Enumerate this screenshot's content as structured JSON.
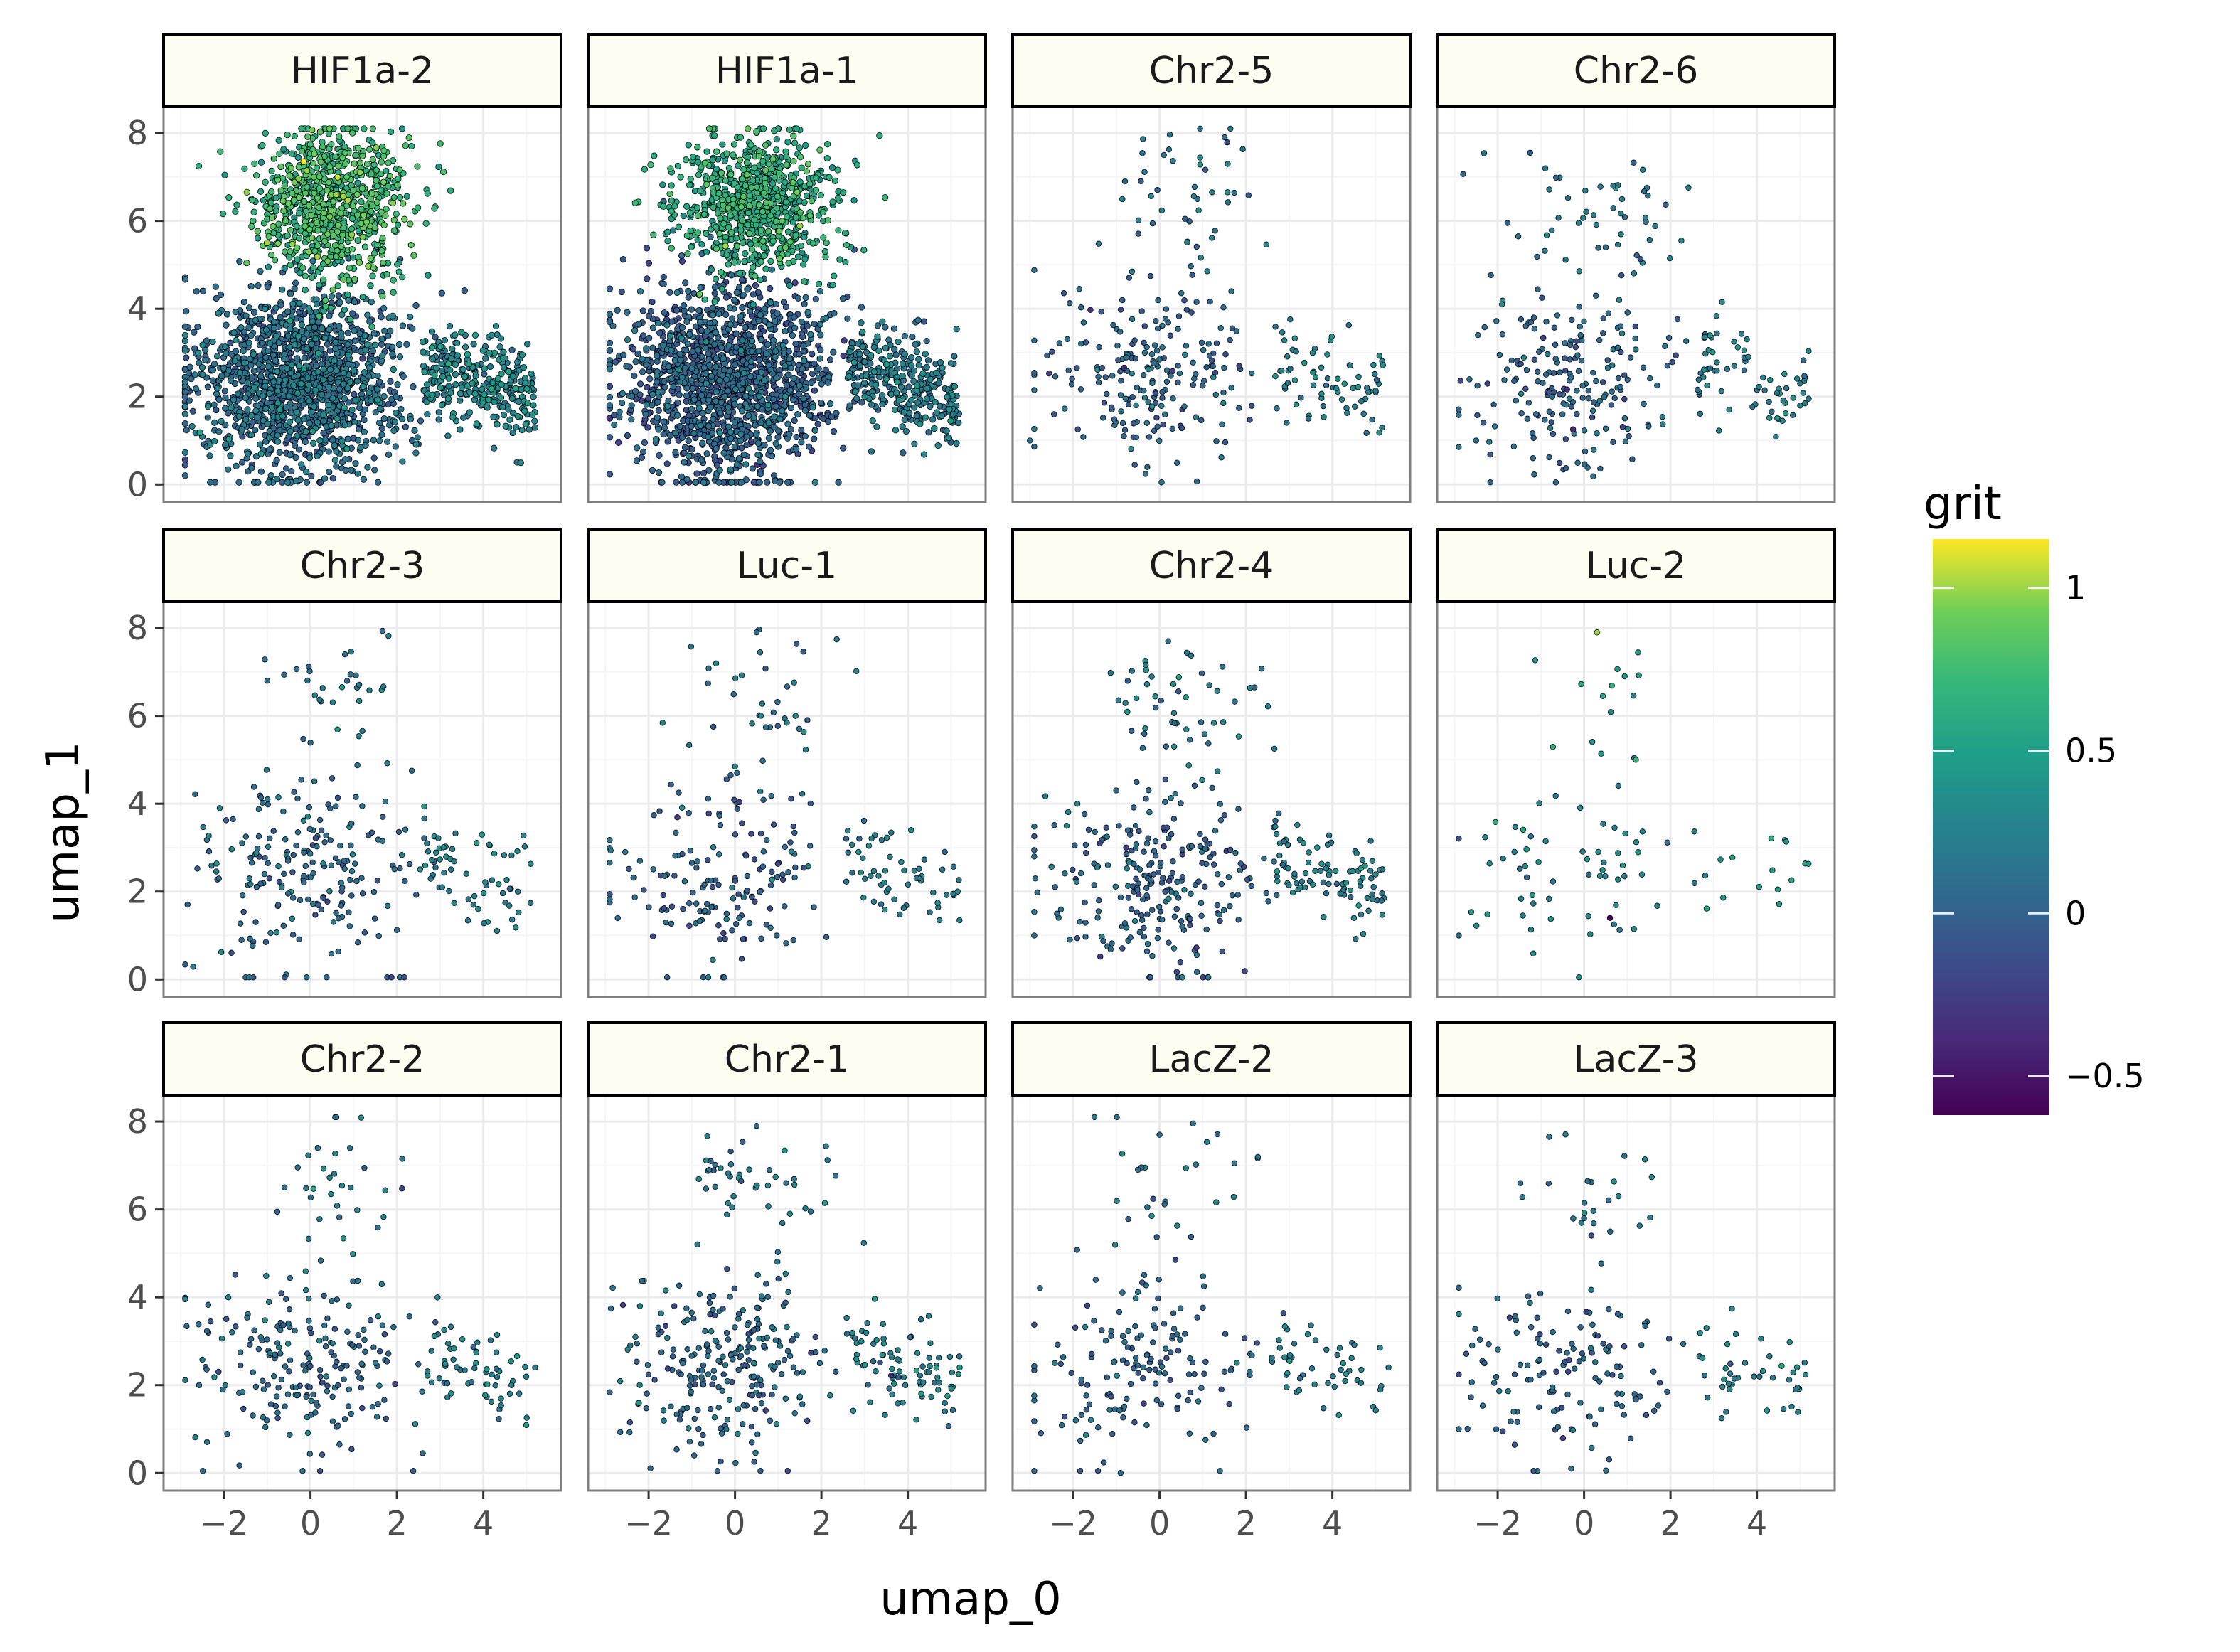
{
  "chart_data": {
    "type": "scatter",
    "layout": "facet-grid 3x4",
    "xlabel": "umap_0",
    "ylabel": "umap_1",
    "xlim": [
      -3.4,
      5.8
    ],
    "ylim": [
      -0.4,
      8.6
    ],
    "xticks": [
      -2,
      0,
      2,
      4
    ],
    "yticks": [
      0,
      2,
      4,
      6,
      8
    ],
    "xtick_labels": [
      "−2",
      "0",
      "2",
      "4"
    ],
    "ytick_labels": [
      "0",
      "2",
      "4",
      "6",
      "8"
    ],
    "grid": true,
    "legend": {
      "title": "grit",
      "type": "colorbar",
      "placement": "right",
      "colormap": "viridis",
      "range": [
        -0.62,
        1.15
      ],
      "ticks": [
        1,
        0.5,
        0,
        -0.5
      ],
      "tick_labels": [
        "1",
        "0.5",
        "0",
        "−0.5"
      ]
    },
    "colors": {
      "strip_fill": "#fdfdf2",
      "panel_border": "#7f7f7f",
      "grid_major": "#ebebeb",
      "grid_minor": "#f5f5f5",
      "point_outline": "#000000"
    },
    "facets": [
      {
        "label": "HIF1a-2",
        "n_points": 2600,
        "grit_mean": 0.15,
        "points": [
          [
            0.6,
            6.6,
            1.0
          ],
          [
            -1.8,
            2.8,
            0.1
          ],
          [
            0.0,
            2.0,
            -0.2
          ],
          [
            3.5,
            2.2,
            0.35
          ]
        ]
      },
      {
        "label": "HIF1a-1",
        "n_points": 2600,
        "grit_mean": 0.05,
        "points": [
          [
            0.4,
            6.6,
            0.55
          ],
          [
            -1.8,
            2.8,
            0.05
          ],
          [
            0.2,
            2.0,
            -0.25
          ],
          [
            3.5,
            2.4,
            0.45
          ]
        ]
      },
      {
        "label": "Chr2-5",
        "n_points": 330,
        "grit_mean": 0.1,
        "points": [
          [
            -0.8,
            6.9,
            0.1
          ],
          [
            -3.0,
            1.0,
            0.1
          ],
          [
            4.8,
            2.2,
            0.2
          ],
          [
            0.1,
            7.5,
            0.1
          ]
        ]
      },
      {
        "label": "Chr2-6",
        "n_points": 330,
        "grit_mean": 0.1,
        "points": [
          [
            -2.5,
            1.0,
            0.1
          ],
          [
            0.5,
            5.4,
            0.1
          ],
          [
            5.0,
            2.3,
            0.2
          ],
          [
            -1.9,
            4.1,
            0.3
          ]
        ]
      },
      {
        "label": "Chr2-3",
        "n_points": 300,
        "grit_mean": 0.12,
        "points": [
          [
            -1.0,
            6.8,
            0.1
          ],
          [
            0.8,
            7.4,
            0.1
          ],
          [
            4.8,
            2.0,
            0.2
          ],
          [
            -2.1,
            3.9,
            0.3
          ]
        ]
      },
      {
        "label": "Luc-1",
        "n_points": 260,
        "grit_mean": 0.08,
        "points": [
          [
            0.5,
            7.9,
            0.1
          ],
          [
            1.4,
            6.0,
            0.3
          ],
          [
            4.8,
            2.5,
            0.2
          ],
          [
            -2.2,
            2.7,
            0.1
          ]
        ]
      },
      {
        "label": "Chr2-4",
        "n_points": 400,
        "grit_mean": 0.1,
        "points": [
          [
            0.2,
            7.7,
            0.1
          ],
          [
            -2.9,
            1.0,
            0.1
          ],
          [
            4.9,
            2.3,
            0.2
          ],
          [
            -1.9,
            4.0,
            0.3
          ]
        ]
      },
      {
        "label": "Luc-2",
        "n_points": 90,
        "grit_mean": 0.35,
        "points": [
          [
            0.3,
            7.9,
            1.0
          ],
          [
            1.2,
            5.0,
            0.7
          ],
          [
            -2.9,
            1.0,
            0.1
          ],
          [
            0.6,
            1.4,
            -0.6
          ]
        ]
      },
      {
        "label": "Chr2-2",
        "n_points": 300,
        "grit_mean": 0.12,
        "points": [
          [
            0.6,
            8.1,
            0.1
          ],
          [
            -0.6,
            6.5,
            0.1
          ],
          [
            5.2,
            2.4,
            0.2
          ],
          [
            -1.9,
            4.0,
            0.35
          ]
        ]
      },
      {
        "label": "Chr2-1",
        "n_points": 380,
        "grit_mean": 0.13,
        "points": [
          [
            0.5,
            7.9,
            0.1
          ],
          [
            -0.6,
            6.9,
            0.1
          ],
          [
            5.2,
            2.4,
            0.5
          ],
          [
            -2.2,
            3.8,
            0.3
          ]
        ]
      },
      {
        "label": "LacZ-2",
        "n_points": 230,
        "grit_mean": 0.1,
        "points": [
          [
            0.0,
            7.7,
            0.1
          ],
          [
            -0.5,
            6.9,
            0.1
          ],
          [
            5.3,
            2.4,
            0.2
          ],
          [
            -0.9,
            0.0,
            0.1
          ]
        ]
      },
      {
        "label": "LacZ-3",
        "n_points": 200,
        "grit_mean": 0.1,
        "points": [
          [
            0.0,
            5.8,
            0.1
          ],
          [
            -2.9,
            1.0,
            0.1
          ],
          [
            4.9,
            1.9,
            0.2
          ],
          [
            -0.3,
            0.1,
            0.1
          ]
        ]
      }
    ]
  }
}
